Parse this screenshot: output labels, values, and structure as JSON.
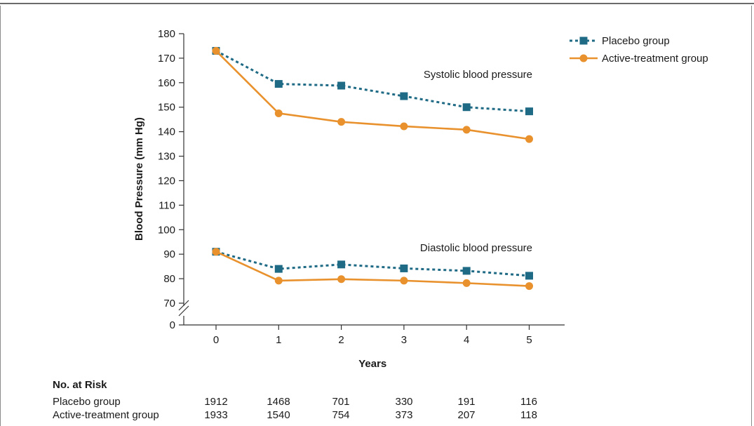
{
  "chart_data": {
    "type": "line",
    "xlabel": "Years",
    "ylabel": "Blood Pressure (mm Hg)",
    "x": [
      0,
      1,
      2,
      3,
      4,
      5
    ],
    "xlim": [
      0,
      5
    ],
    "ylim": [
      70,
      180
    ],
    "y_axis_break": true,
    "y_break_tick": "0",
    "yticks": [
      "70",
      "80",
      "90",
      "100",
      "110",
      "120",
      "130",
      "140",
      "150",
      "160",
      "170",
      "180"
    ],
    "xticks": [
      "0",
      "1",
      "2",
      "3",
      "4",
      "5"
    ],
    "grid": false,
    "legend_position": "top-right",
    "legend": [
      {
        "name": "Placebo group",
        "color": "#1f6a85",
        "style": "dashed",
        "marker": "square"
      },
      {
        "name": "Active-treatment group",
        "color": "#e8912d",
        "style": "solid",
        "marker": "circle"
      }
    ],
    "annotations": [
      "Systolic blood pressure",
      "Diastolic blood pressure"
    ],
    "series": [
      {
        "name": "Placebo group",
        "measure": "Systolic blood pressure",
        "values": [
          173,
          159.5,
          158.8,
          154.5,
          150,
          148.3
        ]
      },
      {
        "name": "Active-treatment group",
        "measure": "Systolic blood pressure",
        "values": [
          173,
          147.5,
          144,
          142.2,
          140.8,
          137
        ]
      },
      {
        "name": "Placebo group",
        "measure": "Diastolic blood pressure",
        "values": [
          91,
          84,
          85.8,
          84.2,
          83.2,
          81.2
        ]
      },
      {
        "name": "Active-treatment group",
        "measure": "Diastolic blood pressure",
        "values": [
          91,
          79.2,
          79.8,
          79.2,
          78.2,
          77
        ]
      }
    ]
  },
  "risk_table": {
    "title": "No. at Risk",
    "rows": [
      {
        "label": "Placebo group",
        "values": [
          "1912",
          "1468",
          "701",
          "330",
          "191",
          "116"
        ]
      },
      {
        "label": "Active-treatment group",
        "values": [
          "1933",
          "1540",
          "754",
          "373",
          "207",
          "118"
        ]
      }
    ]
  }
}
